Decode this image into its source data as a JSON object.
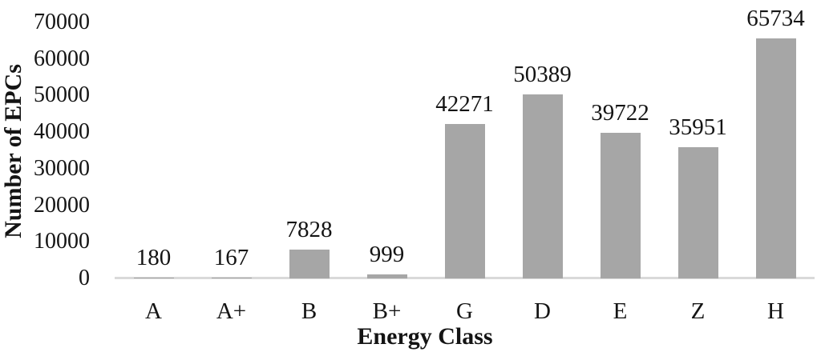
{
  "chart_data": {
    "type": "bar",
    "categories": [
      "A",
      "A+",
      "B",
      "B+",
      "G",
      "D",
      "E",
      "Z",
      "H"
    ],
    "values": [
      180,
      167,
      7828,
      999,
      42271,
      50389,
      39722,
      35951,
      65734
    ],
    "data_labels": [
      "180",
      "167",
      "7828",
      "999",
      "42271",
      "50389",
      "39722",
      "35951",
      "65734"
    ],
    "title": "",
    "xlabel": "Energy Class",
    "ylabel": "Number of EPCs",
    "ylim": [
      0,
      70000
    ],
    "yticks": [
      0,
      10000,
      20000,
      30000,
      40000,
      50000,
      60000,
      70000
    ],
    "grid": false,
    "legend_position": "none",
    "colors": {
      "bar_fill": "#a6a6a6",
      "axis_line": "#d9d9d9",
      "text": "#141414",
      "background": "#ffffff"
    }
  }
}
